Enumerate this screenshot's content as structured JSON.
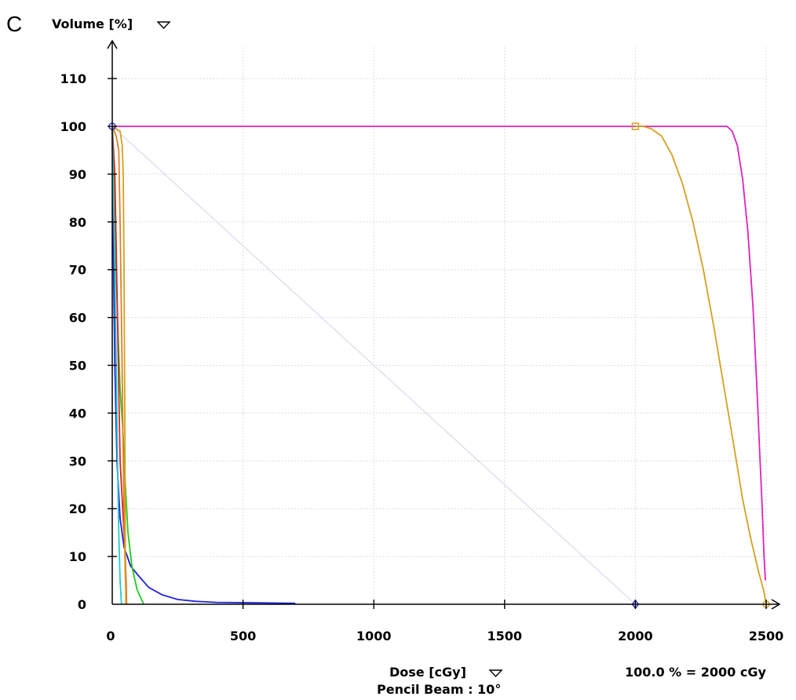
{
  "panel_label": "C",
  "chart_data": {
    "type": "line",
    "ylabel": "Volume [%]",
    "xlabel": "Dose [cGy]",
    "subtitle": "Pencil Beam : 10°",
    "normalization": "100.0 % = 2000 cGy",
    "xlim": [
      0,
      2500
    ],
    "ylim": [
      0,
      115
    ],
    "x_ticks": [
      0,
      500,
      1000,
      1500,
      2000,
      2500
    ],
    "y_ticks": [
      0,
      10,
      20,
      30,
      40,
      50,
      60,
      70,
      80,
      90,
      100,
      110
    ],
    "grid": true,
    "legend": "none",
    "reference_line": {
      "color": "#d8d8ee",
      "points": [
        [
          0,
          100
        ],
        [
          2000,
          0
        ]
      ]
    },
    "markers": [
      {
        "x": 0,
        "y": 100,
        "shape": "circle",
        "color": "#3333cc"
      },
      {
        "x": 2000,
        "y": 100,
        "shape": "square",
        "color": "#d4a020"
      },
      {
        "x": 2000,
        "y": 0,
        "shape": "diamond",
        "color": "#3333cc"
      },
      {
        "x": 2500,
        "y": 0,
        "shape": "circle",
        "color": "#d4a020"
      }
    ],
    "series": [
      {
        "color": "#e020c0",
        "points": [
          [
            0,
            100
          ],
          [
            2350,
            100
          ],
          [
            2370,
            99
          ],
          [
            2390,
            96
          ],
          [
            2410,
            89
          ],
          [
            2430,
            78
          ],
          [
            2450,
            62
          ],
          [
            2465,
            45
          ],
          [
            2475,
            32
          ],
          [
            2485,
            20
          ],
          [
            2492,
            10
          ],
          [
            2497,
            5
          ]
        ]
      },
      {
        "color": "#d4a020",
        "points": [
          [
            2000,
            100
          ],
          [
            2030,
            100
          ],
          [
            2060,
            99.5
          ],
          [
            2100,
            98
          ],
          [
            2140,
            94
          ],
          [
            2180,
            88
          ],
          [
            2220,
            80
          ],
          [
            2260,
            70
          ],
          [
            2300,
            58
          ],
          [
            2340,
            45
          ],
          [
            2380,
            32
          ],
          [
            2410,
            22
          ],
          [
            2440,
            14
          ],
          [
            2470,
            7
          ],
          [
            2490,
            3
          ],
          [
            2500,
            0
          ]
        ]
      },
      {
        "color": "#2020dd",
        "points": [
          [
            0,
            100
          ],
          [
            5,
            70
          ],
          [
            10,
            50
          ],
          [
            18,
            30
          ],
          [
            30,
            18
          ],
          [
            45,
            12
          ],
          [
            70,
            8
          ],
          [
            100,
            6
          ],
          [
            140,
            3.5
          ],
          [
            190,
            2
          ],
          [
            250,
            1
          ],
          [
            320,
            0.6
          ],
          [
            400,
            0.4
          ],
          [
            550,
            0.3
          ],
          [
            700,
            0.2
          ]
        ]
      },
      {
        "color": "#20cc20",
        "points": [
          [
            0,
            100
          ],
          [
            10,
            80
          ],
          [
            20,
            60
          ],
          [
            30,
            45
          ],
          [
            40,
            37
          ],
          [
            50,
            25
          ],
          [
            60,
            15
          ],
          [
            75,
            8
          ],
          [
            95,
            3
          ],
          [
            120,
            0
          ]
        ]
      },
      {
        "color": "#e02020",
        "points": [
          [
            0,
            100
          ],
          [
            10,
            90
          ],
          [
            15,
            75
          ],
          [
            20,
            60
          ],
          [
            25,
            45
          ],
          [
            30,
            30
          ],
          [
            40,
            20
          ],
          [
            50,
            10
          ],
          [
            55,
            0
          ]
        ]
      },
      {
        "color": "#e08020",
        "points": [
          [
            0,
            100
          ],
          [
            15,
            98
          ],
          [
            25,
            95
          ],
          [
            30,
            80
          ],
          [
            35,
            60
          ],
          [
            40,
            40
          ],
          [
            45,
            20
          ],
          [
            50,
            5
          ],
          [
            55,
            0
          ]
        ]
      },
      {
        "color": "#20cccc",
        "points": [
          [
            0,
            100
          ],
          [
            5,
            85
          ],
          [
            10,
            70
          ],
          [
            15,
            50
          ],
          [
            20,
            30
          ],
          [
            25,
            15
          ],
          [
            30,
            5
          ],
          [
            35,
            0
          ]
        ]
      },
      {
        "color": "#d4a020",
        "points": [
          [
            0,
            100
          ],
          [
            30,
            99
          ],
          [
            38,
            96
          ],
          [
            42,
            90
          ],
          [
            45,
            70
          ],
          [
            48,
            40
          ],
          [
            50,
            10
          ],
          [
            52,
            0
          ]
        ]
      }
    ]
  }
}
